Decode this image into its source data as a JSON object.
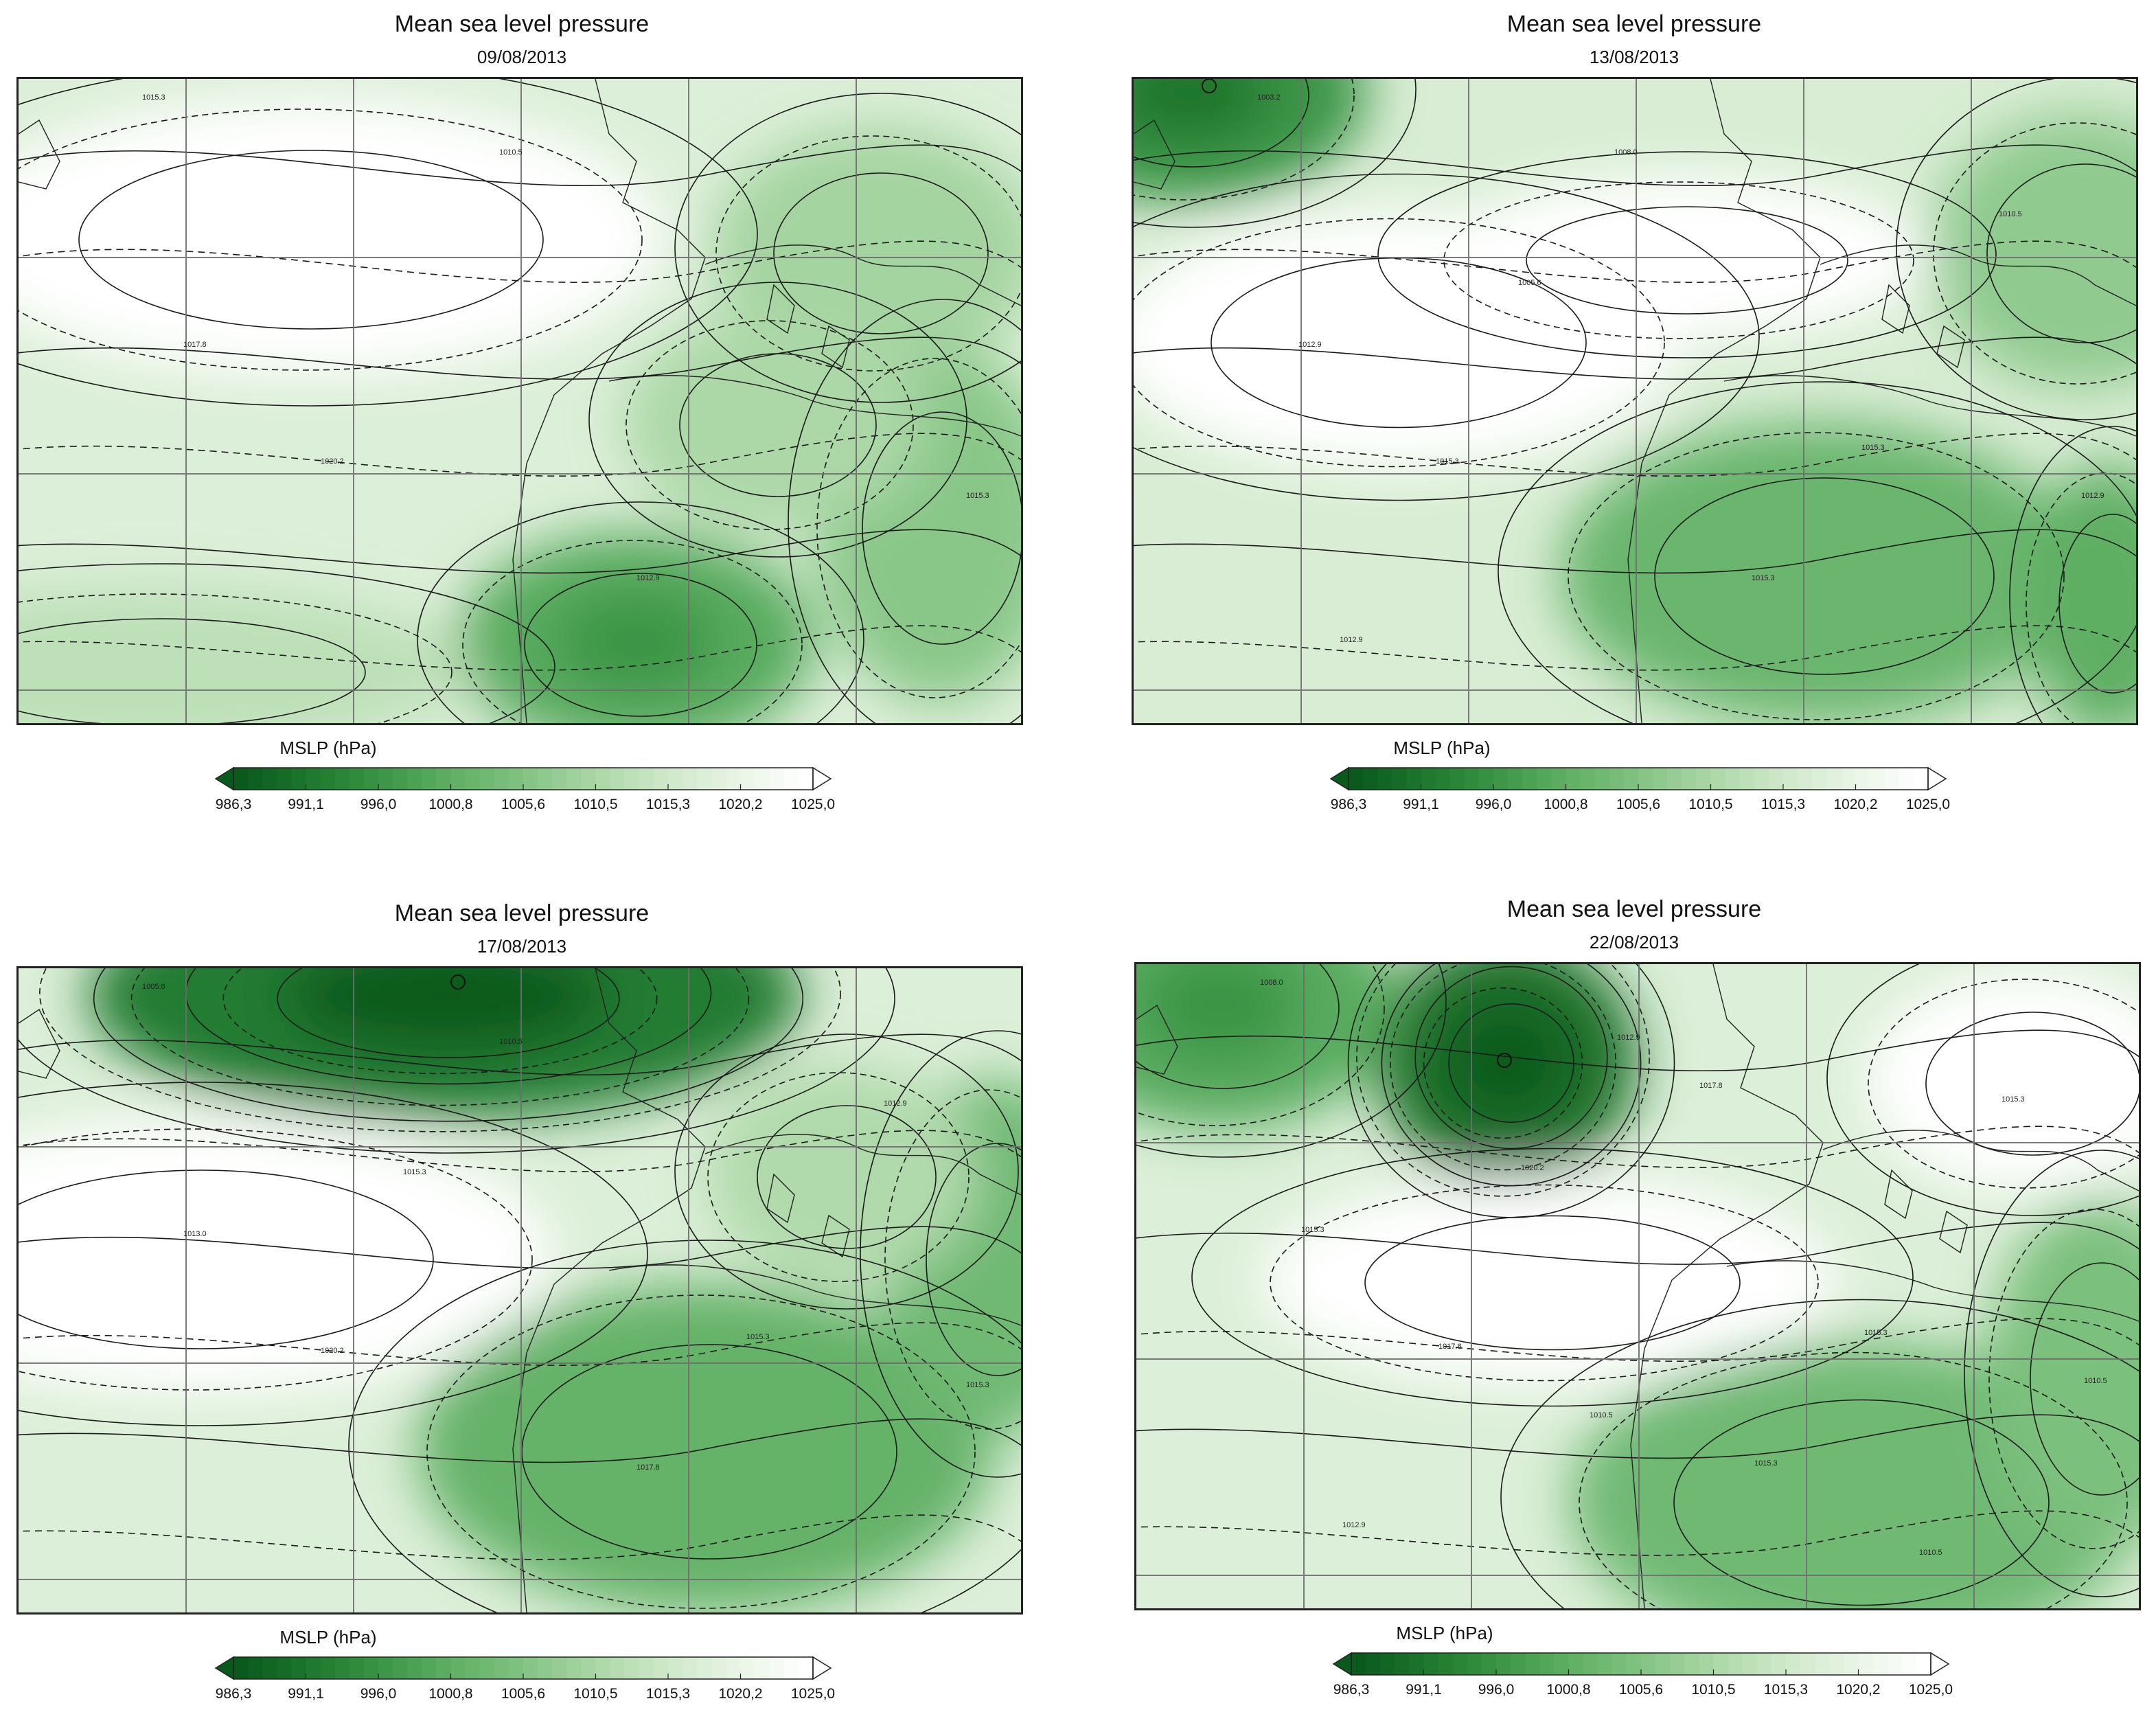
{
  "panels": [
    {
      "title": "Mean sea level pressure",
      "date": "09/08/2013",
      "colorbar_label": "MSLP (hPa)",
      "contour_labels": [
        "1015.3",
        "1010.5",
        "1017.8",
        "1020.2",
        "1012.9",
        "1015.3"
      ]
    },
    {
      "title": "Mean sea level pressure",
      "date": "13/08/2013",
      "colorbar_label": "MSLP (hPa)",
      "contour_labels": [
        "1003.2",
        "1008.0",
        "1012.9",
        "1015.3",
        "1015.3",
        "1012.9",
        "1010.5",
        "1005.6",
        "1015.3",
        "1012.9"
      ]
    },
    {
      "title": "Mean sea level pressure",
      "date": "17/08/2013",
      "colorbar_label": "MSLP (hPa)",
      "contour_labels": [
        "1005.6",
        "1010.5",
        "1013.0",
        "1020.2",
        "1017.8",
        "1015.3",
        "1012.9",
        "1015.3",
        "1015.3"
      ]
    },
    {
      "title": "Mean sea level pressure",
      "date": "22/08/2013",
      "colorbar_label": "MSLP (hPa)",
      "contour_labels": [
        "1008.0",
        "1012.9",
        "1015.3",
        "1017.8",
        "1015.3",
        "1010.5",
        "1015.3",
        "1020.2",
        "1015.3",
        "1012.9",
        "1017.8",
        "1010.5",
        "1010.5"
      ]
    }
  ],
  "colorbar": {
    "ticks": [
      "986,3",
      "991,1",
      "996,0",
      "1000,8",
      "1005,6",
      "1010,5",
      "1015,3",
      "1020,2",
      "1025,0"
    ],
    "min": 986.3,
    "max": 1025.0,
    "low_color": "#0a5a1e",
    "high_color": "#ffffff",
    "extend": "both"
  }
}
